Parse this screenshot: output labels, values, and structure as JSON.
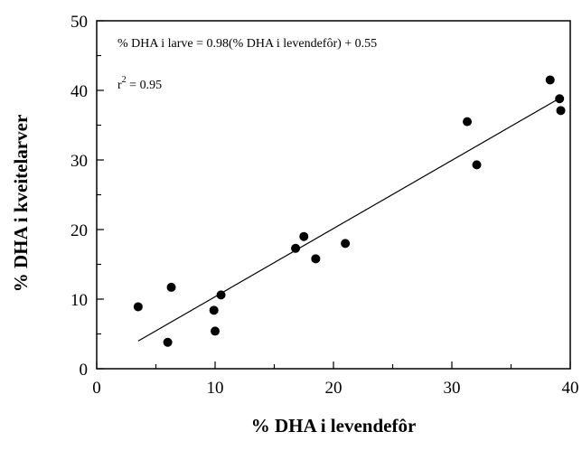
{
  "chart_data": {
    "type": "scatter",
    "xlabel": "% DHA i levendefôr",
    "ylabel": "% DHA i kveitelarver",
    "xlim": [
      0,
      40
    ],
    "ylim": [
      0,
      50
    ],
    "x_ticks": [
      "0",
      "10",
      "20",
      "30",
      "40"
    ],
    "y_ticks": [
      "0",
      "10",
      "20",
      "30",
      "40",
      "50"
    ],
    "grid": false,
    "series": [
      {
        "points": [
          {
            "x": 3.5,
            "y": 8.9
          },
          {
            "x": 6.0,
            "y": 3.8
          },
          {
            "x": 6.3,
            "y": 11.7
          },
          {
            "x": 9.9,
            "y": 8.4
          },
          {
            "x": 10.0,
            "y": 5.4
          },
          {
            "x": 10.5,
            "y": 10.6
          },
          {
            "x": 16.8,
            "y": 17.3
          },
          {
            "x": 17.5,
            "y": 19.0
          },
          {
            "x": 18.5,
            "y": 15.8
          },
          {
            "x": 21.0,
            "y": 18.0
          },
          {
            "x": 31.3,
            "y": 35.5
          },
          {
            "x": 32.1,
            "y": 29.3
          },
          {
            "x": 38.3,
            "y": 41.5
          },
          {
            "x": 39.1,
            "y": 38.8
          },
          {
            "x": 39.2,
            "y": 37.1
          }
        ]
      }
    ],
    "trendline": {
      "slope": 0.98,
      "intercept": 0.55,
      "x_start": 3.5,
      "x_end": 39.1
    },
    "annotations": {
      "equation": "% DHA i larve = 0.98(% DHA i levendefôr) + 0.55",
      "r2_prefix": "r",
      "r2_exponent": "2",
      "r2_value": " = 0.95"
    }
  }
}
